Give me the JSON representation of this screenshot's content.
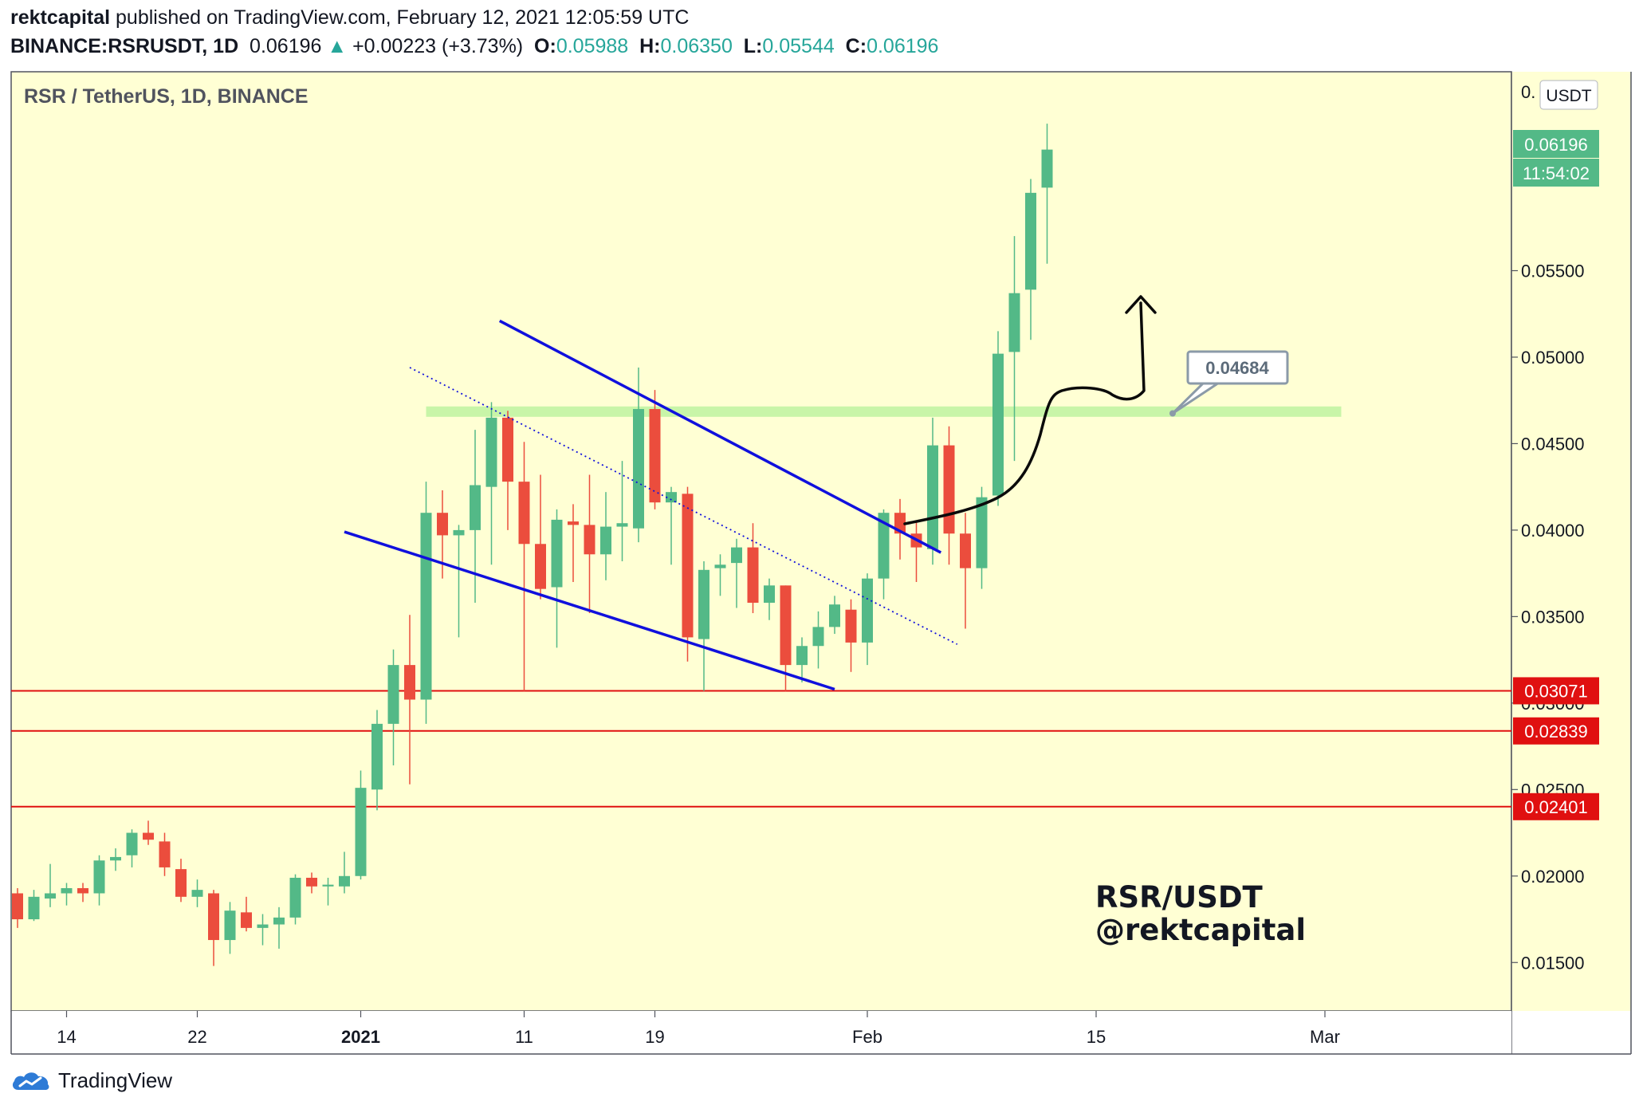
{
  "header": {
    "author": "rektcapital",
    "published_text": "published on TradingView.com, February 12, 2021 12:05:59 UTC",
    "symbol": "BINANCE:RSRUSDT, 1D",
    "last": "0.06196",
    "change_arrow": "▲",
    "change": "+0.00223 (+3.73%)",
    "o_label": "O:",
    "o_value": "0.05988",
    "h_label": "H:",
    "h_value": "0.06350",
    "l_label": "L:",
    "l_value": "0.05544",
    "c_label": "C:",
    "c_value": "0.06196"
  },
  "colors": {
    "plot_bg": "#ffffd4",
    "up": "#53b987",
    "down": "#eb4d3d",
    "channel": "#1010dd",
    "support": "#e01010",
    "zone": "#c8f5a8",
    "axis_text": "#131722"
  },
  "footer": {
    "brand": "TradingView",
    "logo_icon": "tradingview-cloud-icon"
  },
  "chart_data": {
    "type": "candlestick",
    "title": "RSR / TetherUS, 1D, BINANCE",
    "watermark": [
      "RSR/USDT",
      "@rektcapital"
    ],
    "currency_label": "USDT",
    "y_axis_top_label": "0.",
    "price_label": "0.06196",
    "countdown_label": "11:54:02",
    "ylim": [
      0.0122,
      0.0665
    ],
    "yticks": [
      "0.01500",
      "0.02000",
      "0.02500",
      "0.03000",
      "0.03500",
      "0.04000",
      "0.04500",
      "0.05000",
      "0.05500"
    ],
    "x_labels": [
      {
        "label": "14",
        "day": 3,
        "bold": false
      },
      {
        "label": "22",
        "day": 11,
        "bold": false
      },
      {
        "label": "2021",
        "day": 21,
        "bold": true
      },
      {
        "label": "11",
        "day": 31,
        "bold": false
      },
      {
        "label": "19",
        "day": 39,
        "bold": false
      },
      {
        "label": "Feb",
        "day": 52,
        "bold": false
      },
      {
        "label": "15",
        "day": 66,
        "bold": false
      },
      {
        "label": "Mar",
        "day": 80,
        "bold": false
      }
    ],
    "first_date": "2020-12-11",
    "candles": [
      {
        "o": 0.019,
        "h": 0.0193,
        "l": 0.017,
        "c": 0.0175
      },
      {
        "o": 0.0175,
        "h": 0.0192,
        "l": 0.0174,
        "c": 0.0188
      },
      {
        "o": 0.0187,
        "h": 0.0207,
        "l": 0.0182,
        "c": 0.019
      },
      {
        "o": 0.019,
        "h": 0.0196,
        "l": 0.0183,
        "c": 0.0193
      },
      {
        "o": 0.0193,
        "h": 0.0196,
        "l": 0.0185,
        "c": 0.019
      },
      {
        "o": 0.019,
        "h": 0.0212,
        "l": 0.0183,
        "c": 0.0209
      },
      {
        "o": 0.0209,
        "h": 0.0216,
        "l": 0.0203,
        "c": 0.0211
      },
      {
        "o": 0.0212,
        "h": 0.0227,
        "l": 0.0205,
        "c": 0.0225
      },
      {
        "o": 0.0225,
        "h": 0.0232,
        "l": 0.0218,
        "c": 0.0221
      },
      {
        "o": 0.022,
        "h": 0.0225,
        "l": 0.02,
        "c": 0.0205
      },
      {
        "o": 0.0204,
        "h": 0.021,
        "l": 0.0185,
        "c": 0.0188
      },
      {
        "o": 0.0188,
        "h": 0.0198,
        "l": 0.0182,
        "c": 0.0192
      },
      {
        "o": 0.019,
        "h": 0.0192,
        "l": 0.0148,
        "c": 0.0163
      },
      {
        "o": 0.0163,
        "h": 0.0185,
        "l": 0.0155,
        "c": 0.018
      },
      {
        "o": 0.0179,
        "h": 0.0188,
        "l": 0.0168,
        "c": 0.017
      },
      {
        "o": 0.017,
        "h": 0.0178,
        "l": 0.016,
        "c": 0.0172
      },
      {
        "o": 0.0172,
        "h": 0.0182,
        "l": 0.0158,
        "c": 0.0176
      },
      {
        "o": 0.0176,
        "h": 0.0201,
        "l": 0.0172,
        "c": 0.0199
      },
      {
        "o": 0.0199,
        "h": 0.0202,
        "l": 0.019,
        "c": 0.0194
      },
      {
        "o": 0.0194,
        "h": 0.0199,
        "l": 0.0183,
        "c": 0.0195
      },
      {
        "o": 0.0194,
        "h": 0.0214,
        "l": 0.019,
        "c": 0.02
      },
      {
        "o": 0.02,
        "h": 0.0261,
        "l": 0.0198,
        "c": 0.0251
      },
      {
        "o": 0.025,
        "h": 0.0296,
        "l": 0.0238,
        "c": 0.0288
      },
      {
        "o": 0.0288,
        "h": 0.0331,
        "l": 0.0264,
        "c": 0.0322
      },
      {
        "o": 0.0322,
        "h": 0.0351,
        "l": 0.0253,
        "c": 0.0302
      },
      {
        "o": 0.0302,
        "h": 0.0428,
        "l": 0.0288,
        "c": 0.041
      },
      {
        "o": 0.041,
        "h": 0.0423,
        "l": 0.0372,
        "c": 0.0397
      },
      {
        "o": 0.0397,
        "h": 0.0403,
        "l": 0.0338,
        "c": 0.04
      },
      {
        "o": 0.04,
        "h": 0.0458,
        "l": 0.0358,
        "c": 0.0426
      },
      {
        "o": 0.0425,
        "h": 0.0474,
        "l": 0.038,
        "c": 0.0465
      },
      {
        "o": 0.0465,
        "h": 0.0469,
        "l": 0.04,
        "c": 0.0428
      },
      {
        "o": 0.0428,
        "h": 0.0451,
        "l": 0.0307,
        "c": 0.0392
      },
      {
        "o": 0.0392,
        "h": 0.0432,
        "l": 0.036,
        "c": 0.0366
      },
      {
        "o": 0.0367,
        "h": 0.0412,
        "l": 0.0332,
        "c": 0.0406
      },
      {
        "o": 0.0405,
        "h": 0.0415,
        "l": 0.037,
        "c": 0.0403
      },
      {
        "o": 0.0403,
        "h": 0.0432,
        "l": 0.0352,
        "c": 0.0386
      },
      {
        "o": 0.0386,
        "h": 0.0422,
        "l": 0.0371,
        "c": 0.0402
      },
      {
        "o": 0.0402,
        "h": 0.044,
        "l": 0.0382,
        "c": 0.0404
      },
      {
        "o": 0.0401,
        "h": 0.0494,
        "l": 0.0393,
        "c": 0.047
      },
      {
        "o": 0.047,
        "h": 0.0481,
        "l": 0.0412,
        "c": 0.0416
      },
      {
        "o": 0.0416,
        "h": 0.0425,
        "l": 0.038,
        "c": 0.0422
      },
      {
        "o": 0.0421,
        "h": 0.0425,
        "l": 0.0324,
        "c": 0.0338
      },
      {
        "o": 0.0337,
        "h": 0.0382,
        "l": 0.0307,
        "c": 0.0377
      },
      {
        "o": 0.0378,
        "h": 0.0386,
        "l": 0.0362,
        "c": 0.038
      },
      {
        "o": 0.0381,
        "h": 0.0395,
        "l": 0.0355,
        "c": 0.039
      },
      {
        "o": 0.039,
        "h": 0.0404,
        "l": 0.0352,
        "c": 0.0358
      },
      {
        "o": 0.0358,
        "h": 0.0372,
        "l": 0.0348,
        "c": 0.0368
      },
      {
        "o": 0.0368,
        "h": 0.0368,
        "l": 0.0307,
        "c": 0.0322
      },
      {
        "o": 0.0322,
        "h": 0.0338,
        "l": 0.0312,
        "c": 0.0333
      },
      {
        "o": 0.0333,
        "h": 0.0353,
        "l": 0.032,
        "c": 0.0344
      },
      {
        "o": 0.0344,
        "h": 0.0362,
        "l": 0.034,
        "c": 0.0357
      },
      {
        "o": 0.0354,
        "h": 0.036,
        "l": 0.0318,
        "c": 0.0335
      },
      {
        "o": 0.0335,
        "h": 0.0375,
        "l": 0.0322,
        "c": 0.0372
      },
      {
        "o": 0.0372,
        "h": 0.0412,
        "l": 0.036,
        "c": 0.041
      },
      {
        "o": 0.041,
        "h": 0.0418,
        "l": 0.0383,
        "c": 0.0398
      },
      {
        "o": 0.0398,
        "h": 0.0405,
        "l": 0.037,
        "c": 0.039
      },
      {
        "o": 0.0389,
        "h": 0.0465,
        "l": 0.038,
        "c": 0.0449
      },
      {
        "o": 0.0449,
        "h": 0.046,
        "l": 0.038,
        "c": 0.0398
      },
      {
        "o": 0.0398,
        "h": 0.041,
        "l": 0.0343,
        "c": 0.0378
      },
      {
        "o": 0.0378,
        "h": 0.0425,
        "l": 0.0366,
        "c": 0.0419
      },
      {
        "o": 0.042,
        "h": 0.0515,
        "l": 0.0414,
        "c": 0.0502
      },
      {
        "o": 0.0503,
        "h": 0.057,
        "l": 0.044,
        "c": 0.0537
      },
      {
        "o": 0.0539,
        "h": 0.0603,
        "l": 0.051,
        "c": 0.0595
      },
      {
        "o": 0.0598,
        "h": 0.0635,
        "l": 0.0554,
        "c": 0.062
      }
    ],
    "support_levels": [
      0.03071,
      0.02839,
      0.02401
    ],
    "resistance_zone": {
      "from": 0.04655,
      "to": 0.04715,
      "start_day": 25,
      "end_day": 81
    },
    "resistance_label": "0.04684",
    "channel_upper": [
      {
        "day": 29.5,
        "price": 0.0521
      },
      {
        "day": 56.5,
        "price": 0.0387
      }
    ],
    "channel_lower": [
      {
        "day": 20.0,
        "price": 0.0399
      },
      {
        "day": 50.0,
        "price": 0.0308
      }
    ],
    "channel_mid": [
      {
        "day": 24.0,
        "price": 0.0494
      },
      {
        "day": 57.5,
        "price": 0.0334
      }
    ]
  }
}
